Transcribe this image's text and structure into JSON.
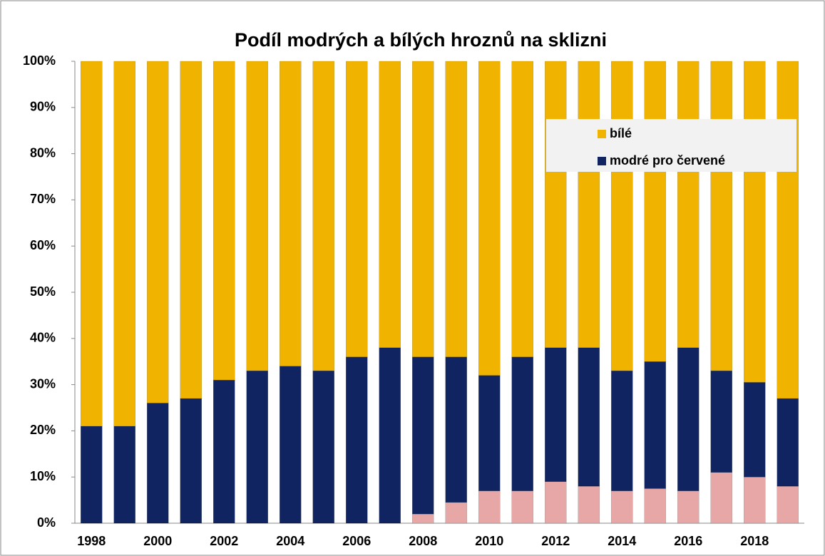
{
  "chart_data": {
    "type": "stacked_bar",
    "title": "Podíl modrých a bílých hroznů na sklizni",
    "categories": [
      "1998",
      null,
      "2000",
      null,
      "2002",
      null,
      "2004",
      null,
      "2006",
      null,
      "2008",
      null,
      "2010",
      null,
      "2012",
      null,
      "2014",
      null,
      "2016",
      null,
      "2018",
      null
    ],
    "series": [
      {
        "color": "#e8a7a7",
        "values": [
          0,
          0,
          0,
          0,
          0,
          0,
          0,
          0,
          0,
          0,
          2,
          4.5,
          7,
          7,
          9,
          8,
          7,
          7.5,
          7,
          11,
          10,
          8
        ]
      },
      {
        "name": "modré pro červené",
        "color": "#0f2460",
        "values": [
          21,
          21,
          26,
          27,
          31,
          33,
          34,
          33,
          36,
          38,
          34,
          31.5,
          25,
          29,
          29,
          30,
          26,
          27.5,
          31,
          22,
          20.5,
          19
        ]
      },
      {
        "name": "bílé",
        "color": "#f0b400",
        "values": [
          79,
          79,
          74,
          73,
          69,
          67,
          66,
          67,
          64,
          62,
          64,
          64,
          68,
          64,
          62,
          62,
          67,
          65,
          62,
          67,
          69.5,
          73
        ]
      }
    ],
    "ylim": [
      0,
      100
    ],
    "yticks": [
      {
        "value": 0,
        "label": "0%"
      },
      {
        "value": 10,
        "label": "10%"
      },
      {
        "value": 20,
        "label": "20%"
      },
      {
        "value": 30,
        "label": "30%"
      },
      {
        "value": 40,
        "label": "40%"
      },
      {
        "value": 50,
        "label": "50%"
      },
      {
        "value": 60,
        "label": "60%"
      },
      {
        "value": 70,
        "label": "70%"
      },
      {
        "value": 80,
        "label": "80%"
      },
      {
        "value": 90,
        "label": "90%"
      },
      {
        "value": 100,
        "label": "100%"
      }
    ],
    "legend": "upper right"
  }
}
